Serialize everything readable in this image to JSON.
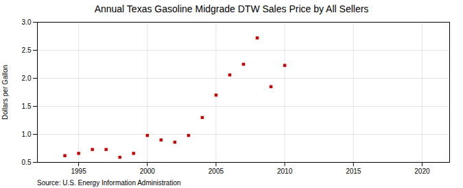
{
  "chart_data": {
    "type": "scatter",
    "title": "Annual Texas Gasoline Midgrade DTW Sales Price by All Sellers",
    "ylabel": "Dollars per Gallon",
    "source": "Source: U.S. Energy Information Administration",
    "x": [
      1994,
      1995,
      1996,
      1997,
      1998,
      1999,
      2000,
      2001,
      2002,
      2003,
      2004,
      2005,
      2006,
      2007,
      2008,
      2009,
      2010
    ],
    "values": [
      0.62,
      0.66,
      0.73,
      0.73,
      0.59,
      0.66,
      0.98,
      0.9,
      0.86,
      0.98,
      1.3,
      1.7,
      2.06,
      2.25,
      2.72,
      1.85,
      2.23
    ],
    "color": "#cc0000",
    "marker": "square",
    "xlim": [
      1992,
      2022
    ],
    "ylim": [
      0.5,
      3.0
    ],
    "xticks": [
      1995,
      2000,
      2005,
      2010,
      2015,
      2020
    ],
    "yticks": [
      0.5,
      {
        "value": 1.0,
        "label": "1.0"
      },
      1.5,
      {
        "value": 2.0,
        "label": "2.0"
      },
      2.5,
      {
        "value": 3.0,
        "label": "3.0"
      }
    ],
    "grid": true
  }
}
